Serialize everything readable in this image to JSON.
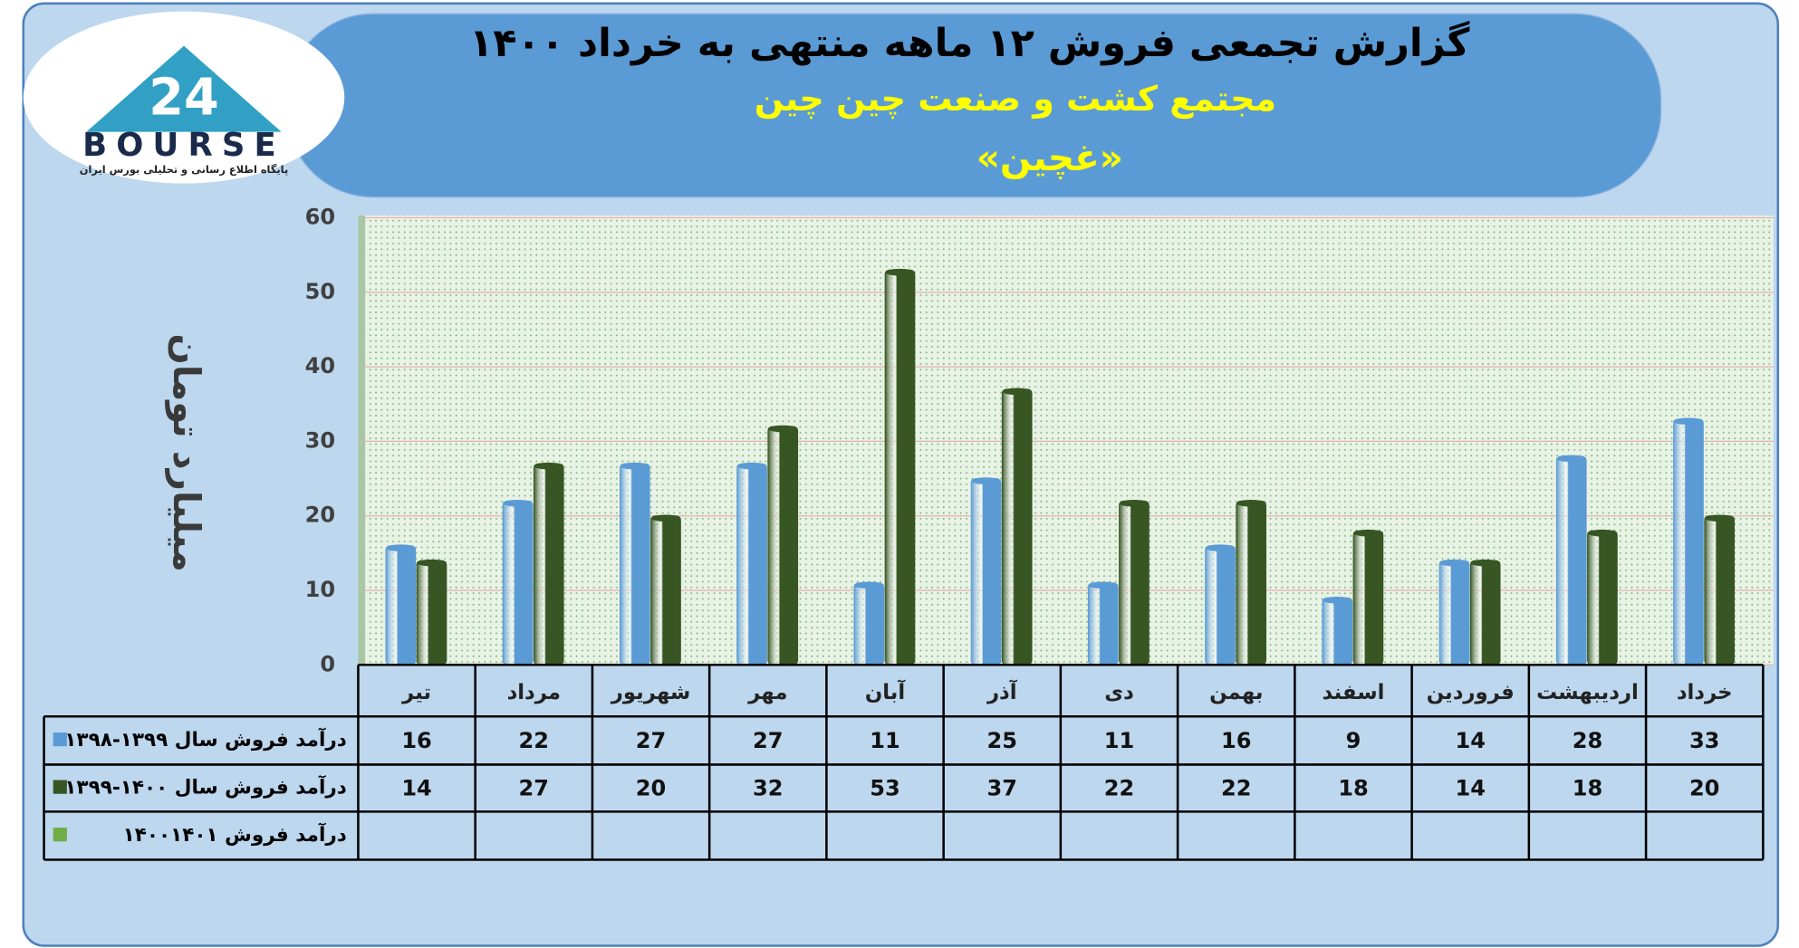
{
  "logo": {
    "mark": "24",
    "name": "BOURSE",
    "tagline": "پایگاه اطلاع رسانی و تحلیلی بورس ایران"
  },
  "chart_data": {
    "type": "bar",
    "title": "گزارش تجمعی فروش ۱۲ ماهه منتهی به خرداد ۱۴۰۰",
    "subtitle": "مجتمع کشت و صنعت چین چین",
    "symbol": "«غچین»",
    "y_label": "میلیارد تومان",
    "categories": [
      "تیر",
      "مرداد",
      "شهریور",
      "مهر",
      "آبان",
      "آذر",
      "دی",
      "بهمن",
      "اسفند",
      "فروردین",
      "اردیبهشت",
      "خرداد"
    ],
    "series": [
      {
        "name": "درآمد فروش سال ۱۳۹۹-۱۳۹۸",
        "color": "#5b9bd5",
        "values": [
          16,
          22,
          27,
          27,
          11,
          25,
          11,
          16,
          9,
          14,
          28,
          33
        ]
      },
      {
        "name": "درآمد فروش سال ۱۴۰۰-۱۳۹۹",
        "color": "#375623",
        "values": [
          14,
          27,
          20,
          32,
          53,
          37,
          22,
          22,
          18,
          14,
          18,
          20
        ]
      },
      {
        "name": "درآمد فروش ۱۴۰۰۱۴۰۱",
        "color": "#70ad47",
        "values": [
          null,
          null,
          null,
          null,
          null,
          null,
          null,
          null,
          null,
          null,
          null,
          null
        ]
      }
    ],
    "ylim": [
      0,
      60
    ],
    "yticks": [
      0,
      10,
      20,
      30,
      40,
      50,
      60
    ],
    "grid": true,
    "data_table": true
  }
}
